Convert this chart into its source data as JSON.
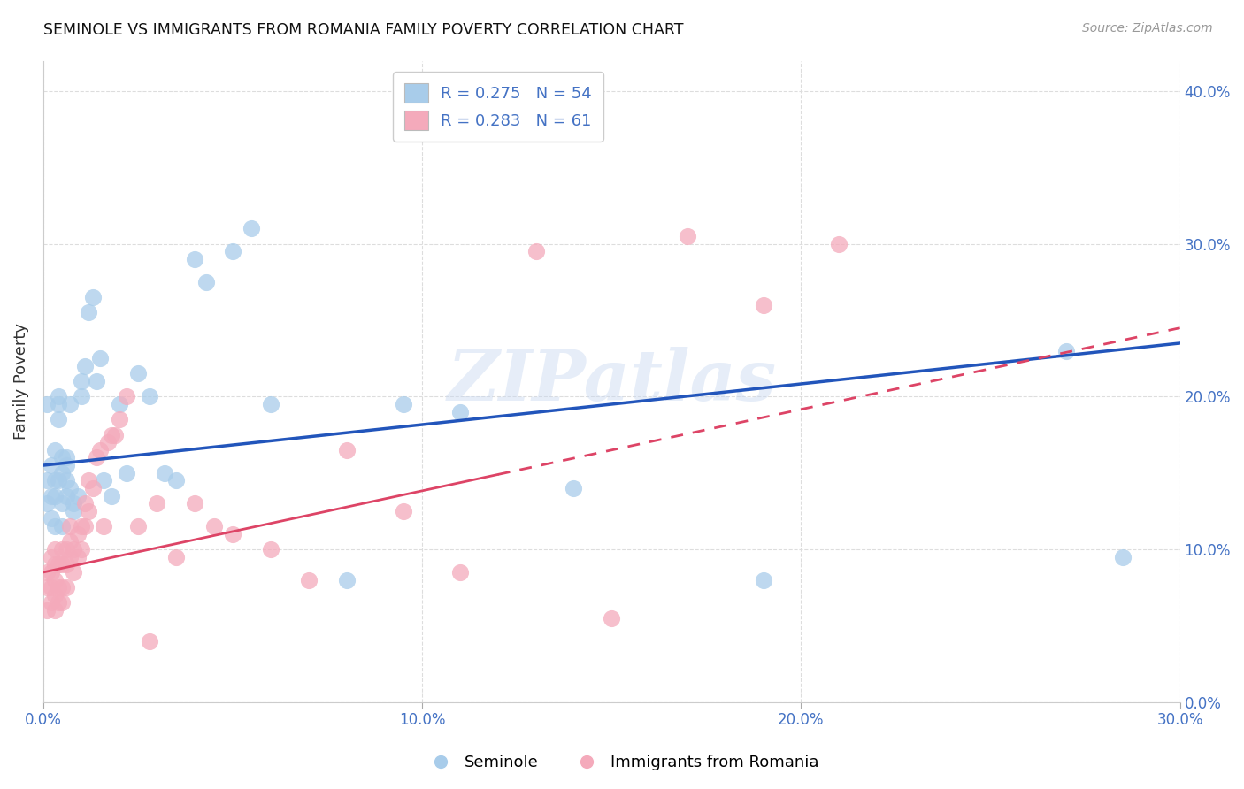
{
  "title": "SEMINOLE VS IMMIGRANTS FROM ROMANIA FAMILY POVERTY CORRELATION CHART",
  "source": "Source: ZipAtlas.com",
  "xlabel_ticks": [
    "0.0%",
    "10.0%",
    "20.0%",
    "30.0%"
  ],
  "ylabel_ticks": [
    "0.0%",
    "10.0%",
    "20.0%",
    "30.0%",
    "40.0%"
  ],
  "xlim": [
    0.0,
    0.3
  ],
  "ylim": [
    0.0,
    0.42
  ],
  "ylabel": "Family Poverty",
  "seminole_R": 0.275,
  "seminole_N": 54,
  "romania_R": 0.283,
  "romania_N": 61,
  "seminole_color": "#A8CCEA",
  "romania_color": "#F4AABB",
  "seminole_line_color": "#2255BB",
  "romania_line_color": "#DD4466",
  "romania_line_solid_end": 0.12,
  "watermark": "ZIPatlas",
  "blue_line_y0": 0.155,
  "blue_line_y1": 0.235,
  "pink_line_y0": 0.085,
  "pink_line_y1": 0.245,
  "seminole_x": [
    0.001,
    0.001,
    0.001,
    0.002,
    0.002,
    0.002,
    0.003,
    0.003,
    0.003,
    0.003,
    0.004,
    0.004,
    0.004,
    0.004,
    0.005,
    0.005,
    0.005,
    0.005,
    0.006,
    0.006,
    0.006,
    0.006,
    0.007,
    0.007,
    0.008,
    0.008,
    0.009,
    0.01,
    0.01,
    0.011,
    0.012,
    0.013,
    0.014,
    0.015,
    0.016,
    0.018,
    0.02,
    0.022,
    0.025,
    0.028,
    0.032,
    0.035,
    0.04,
    0.043,
    0.05,
    0.055,
    0.06,
    0.08,
    0.095,
    0.11,
    0.14,
    0.19,
    0.27,
    0.285
  ],
  "seminole_y": [
    0.195,
    0.145,
    0.13,
    0.155,
    0.135,
    0.12,
    0.165,
    0.145,
    0.135,
    0.115,
    0.2,
    0.195,
    0.185,
    0.145,
    0.16,
    0.15,
    0.13,
    0.115,
    0.16,
    0.155,
    0.145,
    0.135,
    0.195,
    0.14,
    0.13,
    0.125,
    0.135,
    0.2,
    0.21,
    0.22,
    0.255,
    0.265,
    0.21,
    0.225,
    0.145,
    0.135,
    0.195,
    0.15,
    0.215,
    0.2,
    0.15,
    0.145,
    0.29,
    0.275,
    0.295,
    0.31,
    0.195,
    0.08,
    0.195,
    0.19,
    0.14,
    0.08,
    0.23,
    0.095
  ],
  "romania_x": [
    0.001,
    0.001,
    0.001,
    0.002,
    0.002,
    0.002,
    0.002,
    0.003,
    0.003,
    0.003,
    0.003,
    0.003,
    0.004,
    0.004,
    0.004,
    0.005,
    0.005,
    0.005,
    0.005,
    0.006,
    0.006,
    0.006,
    0.007,
    0.007,
    0.007,
    0.008,
    0.008,
    0.009,
    0.009,
    0.01,
    0.01,
    0.011,
    0.011,
    0.012,
    0.012,
    0.013,
    0.014,
    0.015,
    0.016,
    0.017,
    0.018,
    0.019,
    0.02,
    0.022,
    0.025,
    0.028,
    0.03,
    0.035,
    0.04,
    0.045,
    0.05,
    0.06,
    0.07,
    0.08,
    0.095,
    0.11,
    0.13,
    0.15,
    0.17,
    0.19,
    0.21
  ],
  "romania_y": [
    0.06,
    0.075,
    0.085,
    0.065,
    0.075,
    0.085,
    0.095,
    0.06,
    0.07,
    0.08,
    0.09,
    0.1,
    0.065,
    0.075,
    0.09,
    0.065,
    0.075,
    0.09,
    0.1,
    0.075,
    0.09,
    0.1,
    0.095,
    0.105,
    0.115,
    0.085,
    0.1,
    0.095,
    0.11,
    0.1,
    0.115,
    0.115,
    0.13,
    0.125,
    0.145,
    0.14,
    0.16,
    0.165,
    0.115,
    0.17,
    0.175,
    0.175,
    0.185,
    0.2,
    0.115,
    0.04,
    0.13,
    0.095,
    0.13,
    0.115,
    0.11,
    0.1,
    0.08,
    0.165,
    0.125,
    0.085,
    0.295,
    0.055,
    0.305,
    0.26,
    0.3
  ]
}
